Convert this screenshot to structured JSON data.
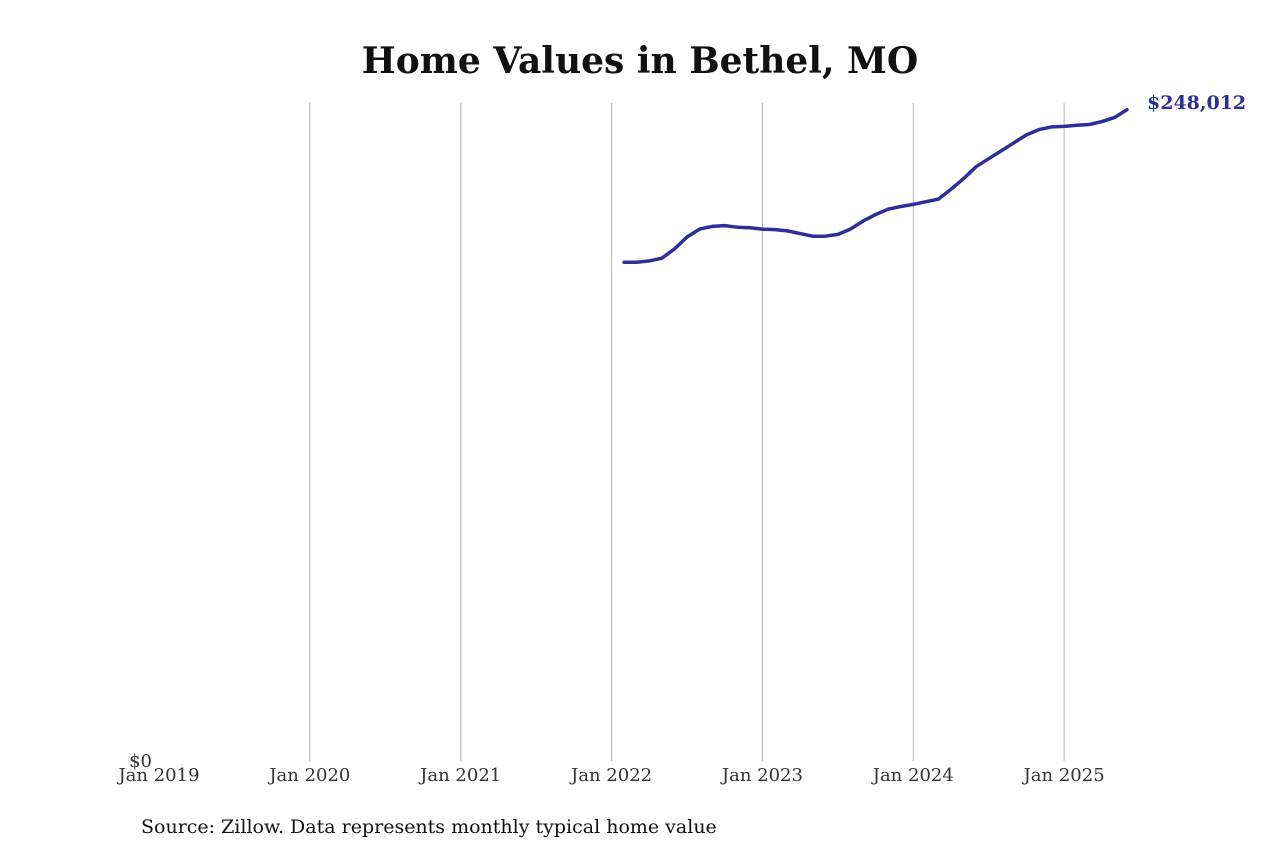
{
  "chart_data": {
    "type": "line",
    "title": "Home Values in Bethel, MO",
    "xlabel": "",
    "ylabel": "",
    "x_ticks": [
      "Jan 2019",
      "Jan 2020",
      "Jan 2021",
      "Jan 2022",
      "Jan 2023",
      "Jan 2024",
      "Jan 2025"
    ],
    "y_ticks": [
      "$0"
    ],
    "ylim": [
      0,
      248012
    ],
    "xlim": [
      "2019-01",
      "2025-06"
    ],
    "grid": "vertical",
    "legend": "none",
    "end_label": "$248,012",
    "line_color": "#2e2e99",
    "series": [
      {
        "points": [
          [
            "2022-02",
            188000
          ],
          [
            "2022-03",
            188000
          ],
          [
            "2022-04",
            188500
          ],
          [
            "2022-05",
            189500
          ],
          [
            "2022-06",
            193000
          ],
          [
            "2022-07",
            197500
          ],
          [
            "2022-08",
            200500
          ],
          [
            "2022-09",
            201500
          ],
          [
            "2022-10",
            201800
          ],
          [
            "2022-11",
            201200
          ],
          [
            "2022-12",
            201000
          ],
          [
            "2023-01",
            200500
          ],
          [
            "2023-02",
            200300
          ],
          [
            "2023-03",
            199800
          ],
          [
            "2023-04",
            198800
          ],
          [
            "2023-05",
            197800
          ],
          [
            "2023-06",
            197800
          ],
          [
            "2023-07",
            198500
          ],
          [
            "2023-08",
            200500
          ],
          [
            "2023-09",
            203500
          ],
          [
            "2023-10",
            206000
          ],
          [
            "2023-11",
            208000
          ],
          [
            "2023-12",
            209000
          ],
          [
            "2024-01",
            209800
          ],
          [
            "2024-02",
            210800
          ],
          [
            "2024-03",
            211800
          ],
          [
            "2024-04",
            215500
          ],
          [
            "2024-05",
            219500
          ],
          [
            "2024-06",
            224000
          ],
          [
            "2024-07",
            227000
          ],
          [
            "2024-08",
            230000
          ],
          [
            "2024-09",
            233000
          ],
          [
            "2024-10",
            236000
          ],
          [
            "2024-11",
            238000
          ],
          [
            "2024-12",
            239000
          ],
          [
            "2025-01",
            239200
          ],
          [
            "2025-02",
            239600
          ],
          [
            "2025-03",
            239900
          ],
          [
            "2025-04",
            241000
          ],
          [
            "2025-05",
            242500
          ],
          [
            "2025-06",
            245500
          ]
        ]
      }
    ]
  },
  "source": "Source: Zillow. Data represents monthly typical home value"
}
